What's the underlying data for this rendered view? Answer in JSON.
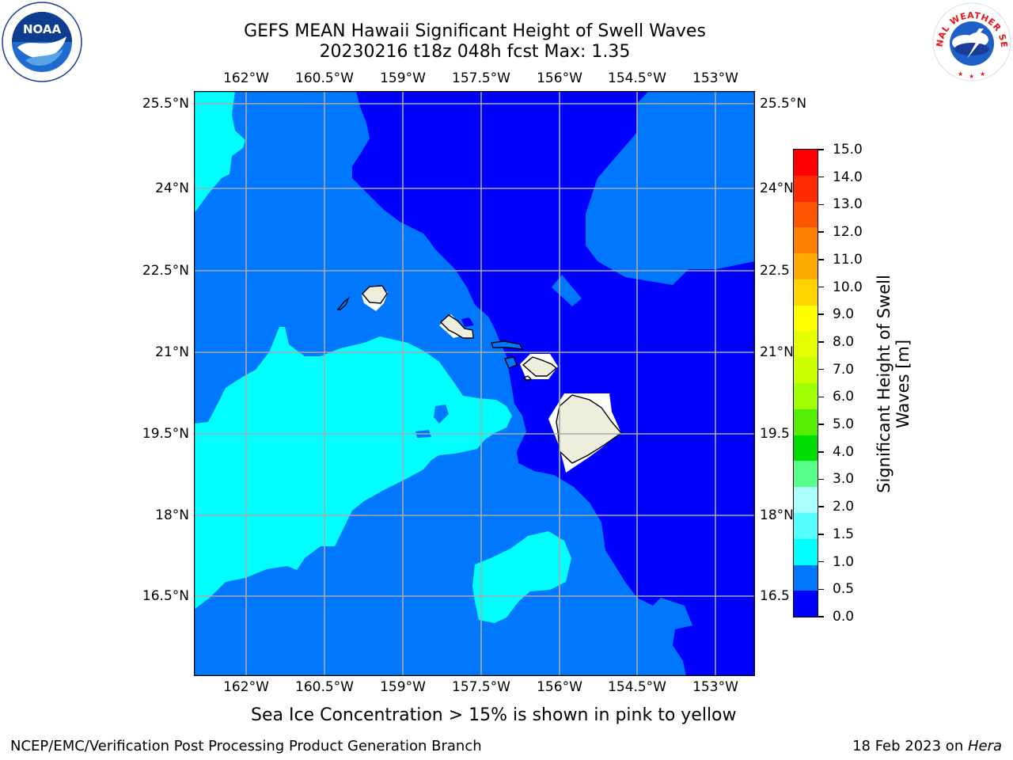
{
  "header": {
    "title_line1": "GEFS MEAN Hawaii Significant Height of Swell Waves",
    "title_line2": "20230216 t18z 048h fcst   Max: 1.35"
  },
  "logos": {
    "noaa": {
      "label": "NOAA",
      "icon": "noaa-logo-icon"
    },
    "nws": {
      "label": "NATIONAL WEATHER SERVICE",
      "icon": "nws-logo-icon"
    }
  },
  "map": {
    "lon_ticks": [
      "162°W",
      "160.5°W",
      "159°W",
      "157.5°W",
      "156°W",
      "154.5°W",
      "153°W"
    ],
    "lat_ticks": [
      "25.5°N",
      "24°N",
      "22.5°N",
      "21°N",
      "19.5°N",
      "18°N",
      "16.5°N"
    ],
    "lat_ticks_right": [
      "25.5°N",
      "24°N",
      "22.5",
      "21°N",
      "19.5",
      "18°N",
      "16.5"
    ],
    "colors": {
      "swell_0_0.5": "#0000ff",
      "swell_0.5_1.0": "#0077ff",
      "swell_1.0_1.5": "#00ffff",
      "land": "#eeeedd",
      "grid": "#aaaaaa"
    }
  },
  "colorbar": {
    "label": "Significant Height of Swell Waves [m]",
    "ticks": [
      "15.0",
      "14.0",
      "13.0",
      "12.0",
      "11.0",
      "10.0",
      "9.0",
      "8.0",
      "7.0",
      "6.0",
      "5.0",
      "4.0",
      "3.0",
      "2.0",
      "1.5",
      "1.0",
      "0.5",
      "0.0"
    ],
    "colors": [
      "#ff0000",
      "#ff2a00",
      "#ff5500",
      "#ff8000",
      "#ffaa00",
      "#ffd500",
      "#ffff00",
      "#e6ff00",
      "#ccff00",
      "#a0ff00",
      "#55ee00",
      "#00dd00",
      "#55ff88",
      "#aaffff",
      "#55ffff",
      "#00ffff",
      "#0077ff",
      "#0000ff"
    ]
  },
  "notes": {
    "ice": "Sea Ice Concentration > 15% is shown in pink to yellow"
  },
  "footer": {
    "left": "NCEP/EMC/Verification Post Processing Product Generation Branch",
    "right_prefix": "18 Feb 2023 on ",
    "right_italic": "Hera"
  }
}
